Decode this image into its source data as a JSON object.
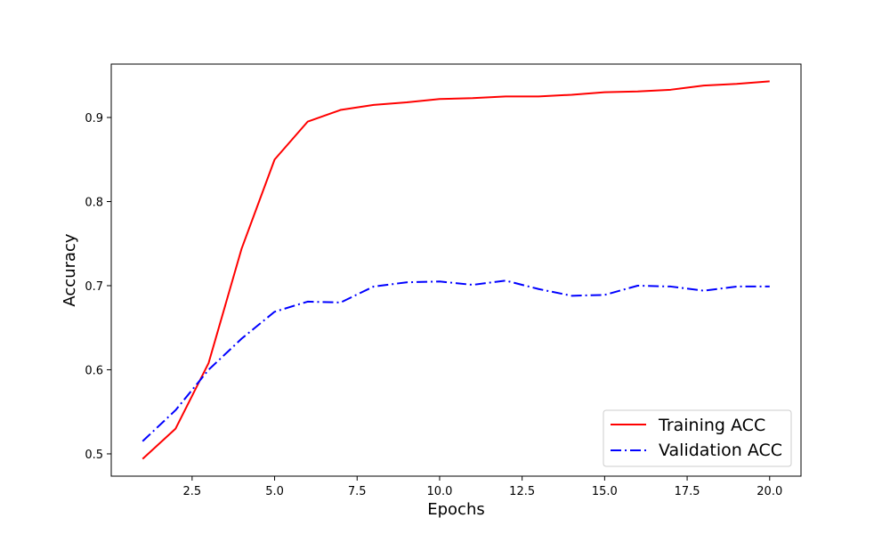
{
  "chart_data": {
    "type": "line",
    "title": "",
    "xlabel": "Epochs",
    "ylabel": "Accuracy",
    "xlim": [
      0.05,
      20.95
    ],
    "ylim": [
      0.4735,
      0.9635
    ],
    "xticks": [
      2.5,
      5.0,
      7.5,
      10.0,
      12.5,
      15.0,
      17.5,
      20.0
    ],
    "xtick_labels": [
      "2.5",
      "5.0",
      "7.5",
      "10.0",
      "12.5",
      "15.0",
      "17.5",
      "20.0"
    ],
    "yticks": [
      0.5,
      0.6,
      0.7,
      0.8,
      0.9
    ],
    "ytick_labels": [
      "0.5",
      "0.6",
      "0.7",
      "0.8",
      "0.9"
    ],
    "grid": false,
    "legend_position": "lower-right",
    "x": [
      1,
      2,
      3,
      4,
      5,
      6,
      7,
      8,
      9,
      10,
      11,
      12,
      13,
      14,
      15,
      16,
      17,
      18,
      19,
      20
    ],
    "series": [
      {
        "name": "Training ACC",
        "color": "#ff0000",
        "linestyle": "solid",
        "values": [
          0.494,
          0.53,
          0.608,
          0.744,
          0.85,
          0.895,
          0.909,
          0.915,
          0.918,
          0.922,
          0.923,
          0.925,
          0.925,
          0.927,
          0.93,
          0.931,
          0.933,
          0.938,
          0.94,
          0.943
        ]
      },
      {
        "name": "Validation ACC",
        "color": "#0000ff",
        "linestyle": "dashdot",
        "values": [
          0.515,
          0.552,
          0.6,
          0.637,
          0.669,
          0.681,
          0.68,
          0.699,
          0.704,
          0.705,
          0.701,
          0.706,
          0.696,
          0.688,
          0.689,
          0.7,
          0.699,
          0.694,
          0.699,
          0.699
        ]
      }
    ]
  }
}
